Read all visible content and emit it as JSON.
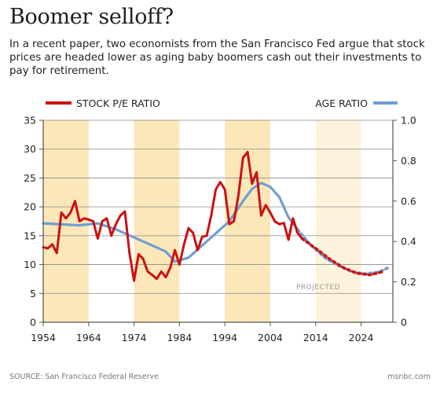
{
  "title": "Boomer selloff?",
  "subtitle": "In a recent paper, two economists from the San Francisco Fed argue that stock prices are headed lower as aging baby boomers cash out their investments to pay for retirement.",
  "source": "SOURCE: San Francisco Federal Reserve",
  "brand": "msnbc.com",
  "chart_data": {
    "type": "line",
    "legend": {
      "left": "STOCK P/E RATIO",
      "right": "AGE RATIO",
      "placement": "top"
    },
    "annotation": "PROJECTED",
    "colors": {
      "pe": "#cc1111",
      "age": "#6f9fd2",
      "band": "#fbe7b8",
      "band_projected": "#fdf3dc"
    },
    "x_ticks": [
      "1954",
      "1964",
      "1974",
      "1984",
      "1994",
      "2004",
      "2014",
      "2024"
    ],
    "xlim": [
      1954,
      2031
    ],
    "y_left_ticks": [
      "0",
      "5",
      "10",
      "15",
      "20",
      "25",
      "30",
      "35"
    ],
    "ylim_left": [
      0,
      35
    ],
    "y_right_ticks": [
      "0",
      "0.2",
      "0.4",
      "0.6",
      "0.8",
      "1.0"
    ],
    "ylim_right": [
      0,
      1.0
    ],
    "grid": true,
    "shaded_periods": [
      {
        "start": 1954,
        "end": 1964
      },
      {
        "start": 1974,
        "end": 1984
      },
      {
        "start": 1994,
        "end": 2004
      },
      {
        "start": 2014,
        "end": 2024,
        "projected": true
      }
    ],
    "series": [
      {
        "name": "STOCK P/E RATIO",
        "axis": "left",
        "x": [
          1954,
          1955,
          1956,
          1957,
          1958,
          1959,
          1960,
          1961,
          1962,
          1963,
          1964,
          1965,
          1966,
          1967,
          1968,
          1969,
          1970,
          1971,
          1972,
          1973,
          1974,
          1975,
          1976,
          1977,
          1978,
          1979,
          1980,
          1981,
          1982,
          1983,
          1984,
          1985,
          1986,
          1987,
          1988,
          1989,
          1990,
          1991,
          1992,
          1993,
          1994,
          1995,
          1996,
          1997,
          1998,
          1999,
          2000,
          2001,
          2002,
          2003,
          2004,
          2005,
          2006,
          2007,
          2008,
          2009,
          2010,
          2011
        ],
        "values": [
          13,
          12.8,
          13.5,
          12,
          19,
          18,
          19,
          21,
          17.5,
          18,
          17.8,
          17.5,
          14.5,
          17.5,
          18,
          15,
          17,
          18.5,
          19.2,
          12,
          7.2,
          11.8,
          11,
          8.8,
          8.2,
          7.5,
          8.8,
          7.8,
          9.5,
          12.5,
          10,
          13.5,
          16.3,
          15.5,
          12.5,
          14.8,
          15,
          18.5,
          23,
          24.3,
          23,
          17,
          17.5,
          22,
          28.5,
          29.5,
          24,
          26,
          18.5,
          20.3,
          19,
          17.5,
          17,
          17.2,
          14.3,
          18,
          15.5,
          14.5
        ]
      },
      {
        "name": "STOCK P/E RATIO (projected)",
        "axis": "left",
        "projected": true,
        "x": [
          2011,
          2014,
          2017,
          2020,
          2023,
          2026,
          2029
        ],
        "values": [
          14.5,
          12.8,
          11,
          9.5,
          8.5,
          8.2,
          8.8
        ]
      },
      {
        "name": "AGE RATIO",
        "axis": "right",
        "x": [
          1954,
          1958,
          1962,
          1966,
          1970,
          1974,
          1978,
          1981,
          1983,
          1986,
          1989,
          1992,
          1995,
          1998,
          2000,
          2002,
          2004,
          2006,
          2008,
          2010
        ],
        "values": [
          0.49,
          0.485,
          0.48,
          0.49,
          0.46,
          0.42,
          0.38,
          0.35,
          0.3,
          0.32,
          0.38,
          0.44,
          0.5,
          0.6,
          0.66,
          0.69,
          0.67,
          0.62,
          0.52,
          0.46
        ]
      },
      {
        "name": "AGE RATIO (projected)",
        "axis": "right",
        "projected": true,
        "x": [
          2010,
          2013,
          2016,
          2019,
          2022,
          2025,
          2028,
          2030
        ],
        "values": [
          0.46,
          0.38,
          0.32,
          0.28,
          0.25,
          0.24,
          0.25,
          0.27
        ]
      }
    ]
  }
}
